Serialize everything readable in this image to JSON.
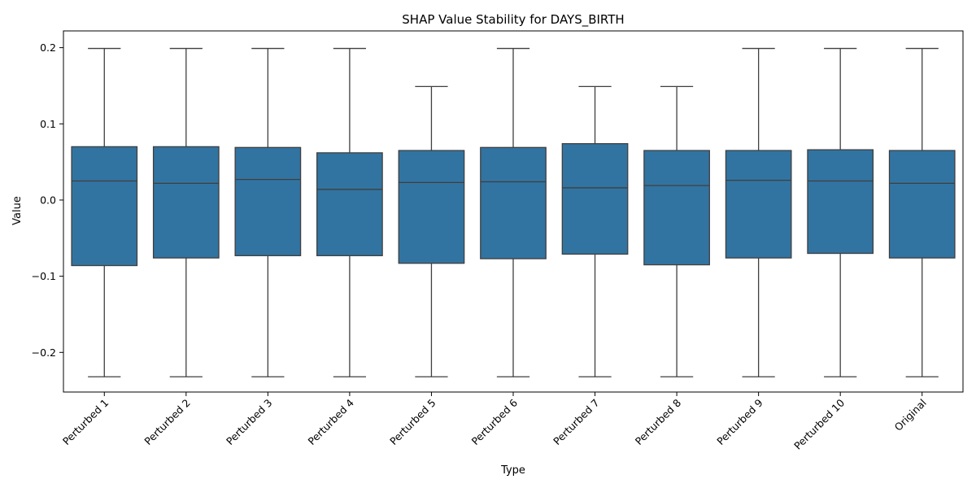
{
  "chart_data": {
    "type": "box",
    "title": "SHAP Value Stability for DAYS_BIRTH",
    "xlabel": "Type",
    "ylabel": "Value",
    "ylim": [
      -0.252,
      0.222
    ],
    "yticks": [
      -0.2,
      -0.1,
      0.0,
      0.1,
      0.2
    ],
    "ytick_labels": [
      "−0.2",
      "−0.1",
      "0.0",
      "0.1",
      "0.2"
    ],
    "box_color": "#3274a1",
    "edge_color": "#3f3f3f",
    "categories": [
      "Perturbed 1",
      "Perturbed 2",
      "Perturbed 3",
      "Perturbed 4",
      "Perturbed 5",
      "Perturbed 6",
      "Perturbed 7",
      "Perturbed 8",
      "Perturbed 9",
      "Perturbed 10",
      "Original"
    ],
    "boxes": [
      {
        "whisker_low": -0.232,
        "q1": -0.086,
        "median": 0.025,
        "q3": 0.07,
        "whisker_high": 0.199
      },
      {
        "whisker_low": -0.232,
        "q1": -0.076,
        "median": 0.022,
        "q3": 0.07,
        "whisker_high": 0.199
      },
      {
        "whisker_low": -0.232,
        "q1": -0.073,
        "median": 0.027,
        "q3": 0.069,
        "whisker_high": 0.199
      },
      {
        "whisker_low": -0.232,
        "q1": -0.073,
        "median": 0.014,
        "q3": 0.062,
        "whisker_high": 0.199
      },
      {
        "whisker_low": -0.232,
        "q1": -0.083,
        "median": 0.023,
        "q3": 0.065,
        "whisker_high": 0.149
      },
      {
        "whisker_low": -0.232,
        "q1": -0.077,
        "median": 0.024,
        "q3": 0.069,
        "whisker_high": 0.199
      },
      {
        "whisker_low": -0.232,
        "q1": -0.071,
        "median": 0.016,
        "q3": 0.074,
        "whisker_high": 0.149
      },
      {
        "whisker_low": -0.232,
        "q1": -0.085,
        "median": 0.019,
        "q3": 0.065,
        "whisker_high": 0.149
      },
      {
        "whisker_low": -0.232,
        "q1": -0.076,
        "median": 0.026,
        "q3": 0.065,
        "whisker_high": 0.199
      },
      {
        "whisker_low": -0.232,
        "q1": -0.07,
        "median": 0.025,
        "q3": 0.066,
        "whisker_high": 0.199
      },
      {
        "whisker_low": -0.232,
        "q1": -0.076,
        "median": 0.022,
        "q3": 0.065,
        "whisker_high": 0.199
      }
    ],
    "grid": false,
    "legend": "none"
  }
}
